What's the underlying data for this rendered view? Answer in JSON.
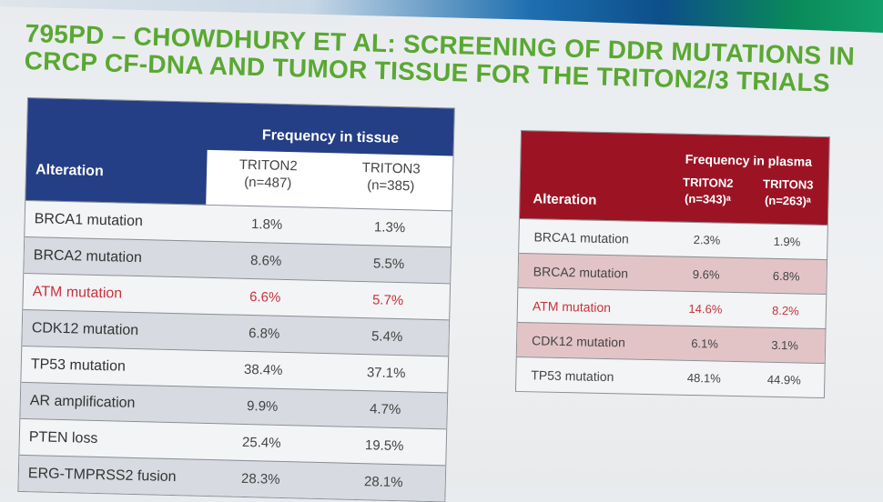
{
  "title": {
    "line1": "795PD – CHOWDHURY ET AL: SCREENING OF DDR MUTATIONS IN",
    "line2": "CRCP CF-DNA AND TUMOR TISSUE FOR THE TRITON2/3 TRIALS"
  },
  "tissue_table": {
    "group_header": "Frequency in tissue",
    "row_header": "Alteration",
    "columns": [
      {
        "name": "TRITON2",
        "n": "(n=487)"
      },
      {
        "name": "TRITON3",
        "n": "(n=385)"
      }
    ],
    "rows": [
      {
        "name": "BRCA1 mutation",
        "v1": "1.8%",
        "v2": "1.3%"
      },
      {
        "name": "BRCA2 mutation",
        "v1": "8.6%",
        "v2": "5.5%"
      },
      {
        "name": "ATM mutation",
        "v1": "6.6%",
        "v2": "5.7%"
      },
      {
        "name": "CDK12 mutation",
        "v1": "6.8%",
        "v2": "5.4%"
      },
      {
        "name": "TP53 mutation",
        "v1": "38.4%",
        "v2": "37.1%"
      },
      {
        "name": "AR amplification",
        "v1": "9.9%",
        "v2": "4.7%"
      },
      {
        "name": "PTEN loss",
        "v1": "25.4%",
        "v2": "19.5%"
      },
      {
        "name": "ERG-TMPRSS2 fusion",
        "v1": "28.3%",
        "v2": "28.1%"
      }
    ]
  },
  "plasma_table": {
    "group_header": "Frequency in plasma",
    "row_header": "Alteration",
    "columns": [
      {
        "name": "TRITON2",
        "n": "(n=343)ᵃ"
      },
      {
        "name": "TRITON3",
        "n": "(n=263)ᵃ"
      }
    ],
    "rows": [
      {
        "name": "BRCA1 mutation",
        "v1": "2.3%",
        "v2": "1.9%"
      },
      {
        "name": "BRCA2 mutation",
        "v1": "9.6%",
        "v2": "6.8%"
      },
      {
        "name": "ATM mutation",
        "v1": "14.6%",
        "v2": "8.2%"
      },
      {
        "name": "CDK12 mutation",
        "v1": "6.1%",
        "v2": "3.1%"
      },
      {
        "name": "TP53 mutation",
        "v1": "48.1%",
        "v2": "44.9%"
      }
    ]
  },
  "colors": {
    "title": "#5aa832",
    "tissue_header": "#243f86",
    "plasma_header": "#9c1424",
    "highlight": "#c8323a"
  }
}
